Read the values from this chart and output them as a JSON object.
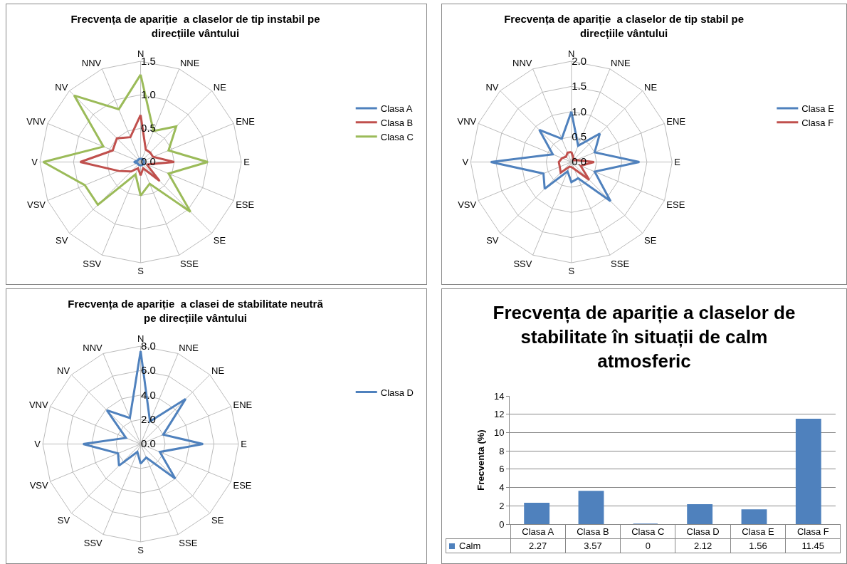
{
  "chart_data": [
    {
      "type": "radar",
      "title": "Frecvența de apariție  a claselor de tip instabil pe direcțiile vântului",
      "categories": [
        "N",
        "NNE",
        "NE",
        "ENE",
        "E",
        "ESE",
        "SE",
        "SSE",
        "S",
        "SSV",
        "SV",
        "VSV",
        "V",
        "VNV",
        "NV",
        "NNV"
      ],
      "series": [
        {
          "name": "Clasa A",
          "color": "#4f81bd",
          "values": [
            0.05,
            0.05,
            0.05,
            0.05,
            0.05,
            0.05,
            0.05,
            0.05,
            0.05,
            0.05,
            0.05,
            0.05,
            0.1,
            0.05,
            0.05,
            0.05
          ]
        },
        {
          "name": "Clasa B",
          "color": "#c0504d",
          "values": [
            0.7,
            0.2,
            0.2,
            0.2,
            0.5,
            0.1,
            0.4,
            0.1,
            0.2,
            0.1,
            0.2,
            0.35,
            0.9,
            0.45,
            0.5,
            0.4
          ]
        },
        {
          "name": "Clasa C",
          "color": "#9bbb59",
          "values": [
            1.3,
            0.5,
            0.75,
            0.45,
            1.0,
            0.45,
            1.05,
            0.35,
            0.5,
            0.2,
            0.9,
            0.9,
            1.45,
            0.6,
            1.4,
            0.85
          ]
        }
      ],
      "ylim": [
        0,
        1.5
      ],
      "yticks": [
        {
          "value": 0,
          "label": "0.0"
        },
        {
          "value": 0.5,
          "label": "0.5"
        },
        {
          "value": 1,
          "label": "1.0"
        },
        {
          "value": 1.5,
          "label": "1.5"
        }
      ],
      "legend": "right"
    },
    {
      "type": "radar",
      "title": "Frecvența de apariție  a claselor de tip stabil pe direcțiile vântului",
      "categories": [
        "N",
        "NNE",
        "NE",
        "ENE",
        "E",
        "ESE",
        "SE",
        "SSE",
        "S",
        "SSV",
        "SV",
        "VSV",
        "V",
        "VNV",
        "NV",
        "NNV"
      ],
      "series": [
        {
          "name": "Clasa E",
          "color": "#4f81bd",
          "values": [
            1.0,
            0.35,
            0.8,
            0.5,
            1.35,
            0.5,
            1.1,
            0.35,
            0.4,
            0.2,
            0.75,
            0.6,
            1.6,
            0.4,
            0.9,
            0.5
          ]
        },
        {
          "name": "Clasa F",
          "color": "#c0504d",
          "values": [
            0.2,
            0.1,
            0.05,
            0.1,
            0.45,
            0.2,
            0.5,
            0.15,
            0.1,
            0.1,
            0.3,
            0.25,
            0.25,
            0.2,
            0.15,
            0.2
          ]
        }
      ],
      "ylim": [
        0,
        2
      ],
      "yticks": [
        {
          "value": 0,
          "label": "0.0"
        },
        {
          "value": 0.5,
          "label": "0.5"
        },
        {
          "value": 1,
          "label": "1.0"
        },
        {
          "value": 1.5,
          "label": "1.5"
        },
        {
          "value": 2,
          "label": "2.0"
        }
      ],
      "legend": "right"
    },
    {
      "type": "radar",
      "title": "Frecvența de apariție  a clasei de stabilitate neutră pe direcțiile vântului",
      "categories": [
        "N",
        "NNE",
        "NE",
        "ENE",
        "E",
        "ESE",
        "SE",
        "SSE",
        "S",
        "SSV",
        "SV",
        "VSV",
        "V",
        "VNV",
        "NV",
        "NNV"
      ],
      "series": [
        {
          "name": "Clasa D",
          "color": "#4f81bd",
          "values": [
            7.6,
            2.0,
            5.2,
            2.0,
            5.1,
            1.7,
            4.0,
            1.2,
            1.6,
            0.7,
            2.5,
            2.0,
            4.7,
            1.3,
            3.9,
            2.3
          ]
        }
      ],
      "ylim": [
        0,
        8
      ],
      "yticks": [
        {
          "value": 0,
          "label": "0.0"
        },
        {
          "value": 2,
          "label": "2.0"
        },
        {
          "value": 4,
          "label": "4.0"
        },
        {
          "value": 6,
          "label": "6.0"
        },
        {
          "value": 8,
          "label": "8.0"
        }
      ],
      "legend": "right"
    },
    {
      "type": "bar",
      "title": "Frecvența de apariție a claselor de stabilitate în situații de calm atmosferic",
      "ylabel": "Frecventa (%)",
      "categories": [
        "Clasa A",
        "Clasa B",
        "Clasa C",
        "Clasa D",
        "Clasa E",
        "Clasa F"
      ],
      "series": [
        {
          "name": "Calm",
          "color": "#4f81bd",
          "values": [
            2.27,
            3.57,
            0,
            2.12,
            1.56,
            11.45
          ]
        }
      ],
      "ylim": [
        0,
        14
      ],
      "yticks": [
        0,
        2,
        4,
        6,
        8,
        10,
        12,
        14
      ],
      "grid": "y",
      "data_labels": true,
      "legend": "bottom"
    }
  ]
}
